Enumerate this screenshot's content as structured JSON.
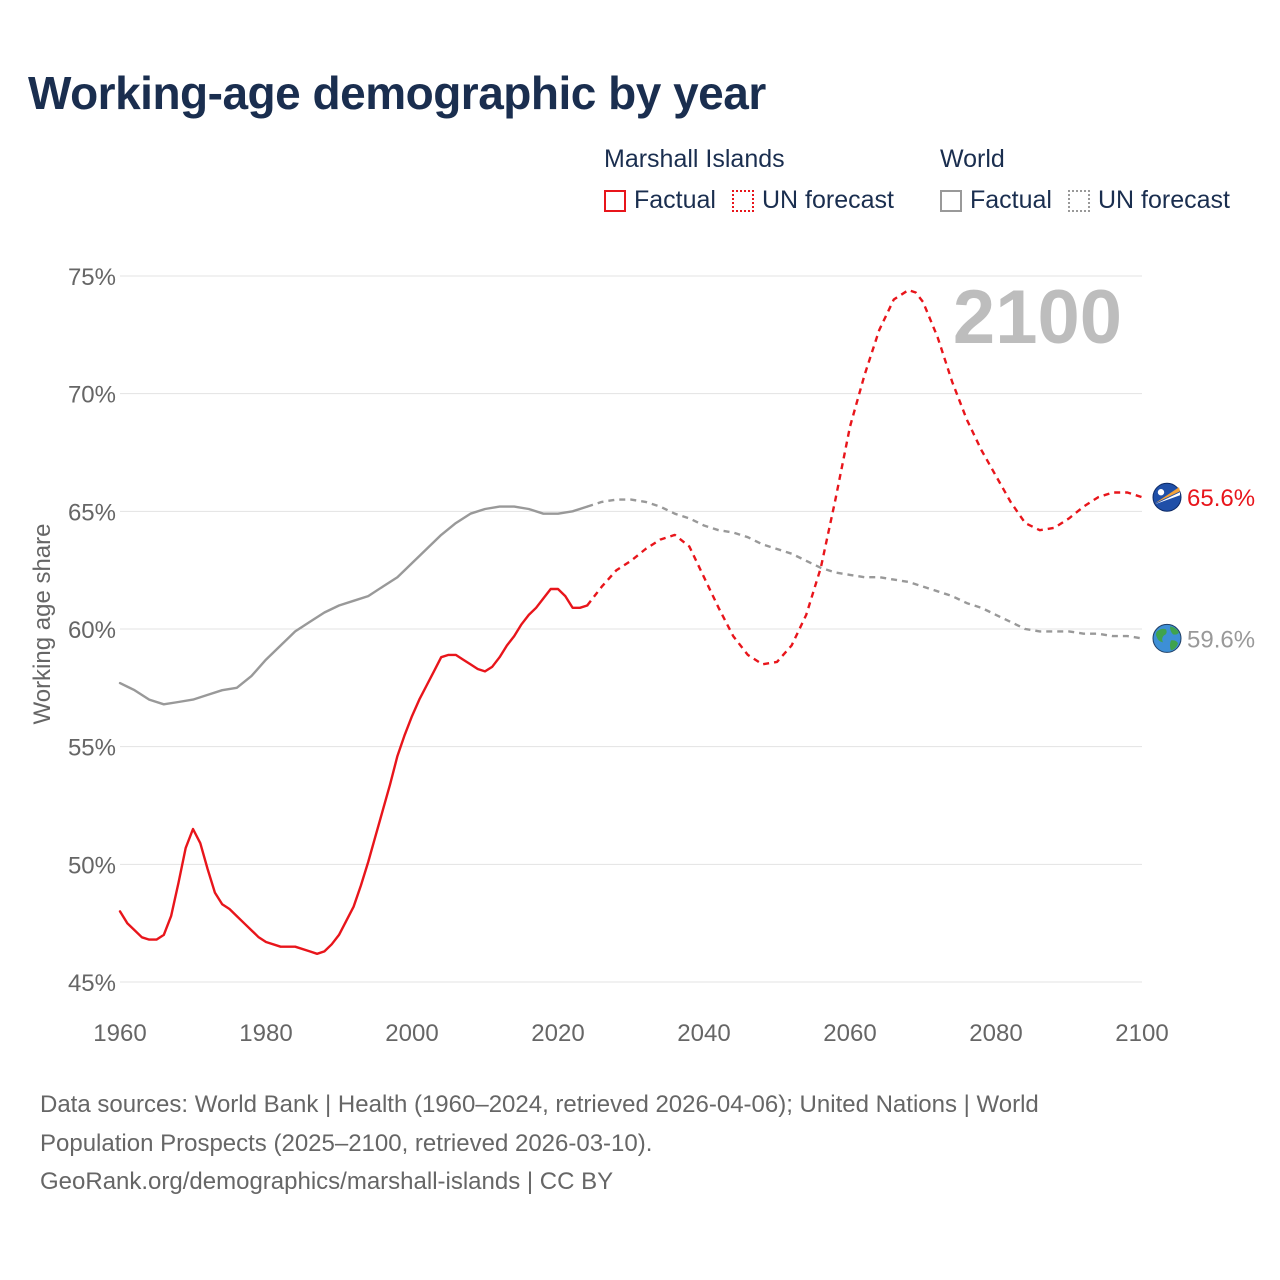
{
  "title": "Working-age demographic by year",
  "legend": {
    "groups": [
      {
        "name": "Marshall Islands",
        "color": "#e8151b",
        "items": [
          {
            "label": "Factual",
            "style": "solid"
          },
          {
            "label": "UN forecast",
            "style": "dotted"
          }
        ]
      },
      {
        "name": "World",
        "color": "#999999",
        "items": [
          {
            "label": "Factual",
            "style": "solid"
          },
          {
            "label": "UN forecast",
            "style": "dotted"
          }
        ]
      }
    ]
  },
  "chart_data": {
    "type": "line",
    "ylabel": "Working age share",
    "xlabel": "",
    "xlim": [
      1960,
      2100
    ],
    "ylim": [
      45,
      75
    ],
    "x_ticks": [
      "1960",
      "1980",
      "2000",
      "2020",
      "2040",
      "2060",
      "2080",
      "2100"
    ],
    "y_ticks": [
      "45%",
      "50%",
      "55%",
      "60%",
      "65%",
      "70%",
      "75%"
    ],
    "year_watermark": "2100",
    "series": [
      {
        "name": "Marshall Islands",
        "color": "#e8151b",
        "end_label": "65.6%",
        "marker_icon": "marshall-islands-flag-icon",
        "factual": {
          "x": [
            1960,
            1961,
            1962,
            1963,
            1964,
            1965,
            1966,
            1967,
            1968,
            1969,
            1970,
            1971,
            1972,
            1973,
            1974,
            1975,
            1976,
            1977,
            1978,
            1979,
            1980,
            1982,
            1984,
            1986,
            1987,
            1988,
            1989,
            1990,
            1991,
            1992,
            1993,
            1994,
            1995,
            1996,
            1997,
            1998,
            1999,
            2000,
            2001,
            2002,
            2003,
            2004,
            2005,
            2006,
            2007,
            2008,
            2009,
            2010,
            2011,
            2012,
            2013,
            2014,
            2015,
            2016,
            2017,
            2018,
            2019,
            2020,
            2021,
            2022,
            2023,
            2024
          ],
          "y": [
            48.0,
            47.5,
            47.2,
            46.9,
            46.8,
            46.8,
            47.0,
            47.8,
            49.2,
            50.7,
            51.5,
            50.9,
            49.8,
            48.8,
            48.3,
            48.1,
            47.8,
            47.5,
            47.2,
            46.9,
            46.7,
            46.5,
            46.5,
            46.3,
            46.2,
            46.3,
            46.6,
            47.0,
            47.6,
            48.2,
            49.1,
            50.1,
            51.2,
            52.3,
            53.4,
            54.6,
            55.5,
            56.3,
            57.0,
            57.6,
            58.2,
            58.8,
            58.9,
            58.9,
            58.7,
            58.5,
            58.3,
            58.2,
            58.4,
            58.8,
            59.3,
            59.7,
            60.2,
            60.6,
            60.9,
            61.3,
            61.7,
            61.7,
            61.4,
            60.9,
            60.9,
            61.0
          ]
        },
        "forecast": {
          "x": [
            2024,
            2026,
            2028,
            2030,
            2032,
            2034,
            2036,
            2038,
            2040,
            2042,
            2044,
            2046,
            2048,
            2050,
            2052,
            2054,
            2056,
            2058,
            2060,
            2062,
            2064,
            2066,
            2068,
            2069,
            2070,
            2072,
            2074,
            2076,
            2078,
            2080,
            2082,
            2084,
            2086,
            2088,
            2090,
            2092,
            2094,
            2096,
            2098,
            2100
          ],
          "y": [
            61.0,
            61.8,
            62.5,
            62.9,
            63.4,
            63.8,
            64.0,
            63.5,
            62.2,
            60.9,
            59.7,
            58.9,
            58.5,
            58.6,
            59.3,
            60.6,
            62.6,
            65.5,
            68.6,
            70.8,
            72.7,
            74.0,
            74.4,
            74.3,
            73.9,
            72.4,
            70.5,
            68.9,
            67.6,
            66.5,
            65.4,
            64.5,
            64.2,
            64.3,
            64.7,
            65.2,
            65.6,
            65.8,
            65.8,
            65.6
          ]
        }
      },
      {
        "name": "World",
        "color": "#999999",
        "end_label": "59.6%",
        "marker_icon": "globe-icon",
        "factual": {
          "x": [
            1960,
            1962,
            1964,
            1966,
            1968,
            1970,
            1972,
            1974,
            1976,
            1978,
            1980,
            1982,
            1984,
            1986,
            1988,
            1990,
            1992,
            1994,
            1996,
            1998,
            2000,
            2002,
            2004,
            2006,
            2008,
            2010,
            2012,
            2014,
            2016,
            2018,
            2020,
            2022,
            2024
          ],
          "y": [
            57.7,
            57.4,
            57.0,
            56.8,
            56.9,
            57.0,
            57.2,
            57.4,
            57.5,
            58.0,
            58.7,
            59.3,
            59.9,
            60.3,
            60.7,
            61.0,
            61.2,
            61.4,
            61.8,
            62.2,
            62.8,
            63.4,
            64.0,
            64.5,
            64.9,
            65.1,
            65.2,
            65.2,
            65.1,
            64.9,
            64.9,
            65.0,
            65.2
          ]
        },
        "forecast": {
          "x": [
            2024,
            2026,
            2028,
            2030,
            2032,
            2034,
            2036,
            2038,
            2040,
            2042,
            2044,
            2046,
            2048,
            2050,
            2052,
            2054,
            2056,
            2058,
            2060,
            2062,
            2064,
            2066,
            2068,
            2070,
            2072,
            2074,
            2076,
            2078,
            2080,
            2082,
            2084,
            2086,
            2088,
            2090,
            2092,
            2094,
            2096,
            2098,
            2100
          ],
          "y": [
            65.2,
            65.4,
            65.5,
            65.5,
            65.4,
            65.2,
            64.9,
            64.7,
            64.4,
            64.2,
            64.1,
            63.9,
            63.6,
            63.4,
            63.2,
            62.9,
            62.6,
            62.4,
            62.3,
            62.2,
            62.2,
            62.1,
            62.0,
            61.8,
            61.6,
            61.4,
            61.1,
            60.9,
            60.6,
            60.3,
            60.0,
            59.9,
            59.9,
            59.9,
            59.8,
            59.8,
            59.7,
            59.7,
            59.6
          ]
        }
      }
    ]
  },
  "footer": {
    "line1": "Data sources: World Bank | Health (1960–2024, retrieved 2026-04-06); United Nations | World",
    "line2": "Population Prospects (2025–2100, retrieved 2026-03-10).",
    "line3": "GeoRank.org/demographics/marshall-islands | CC BY"
  }
}
